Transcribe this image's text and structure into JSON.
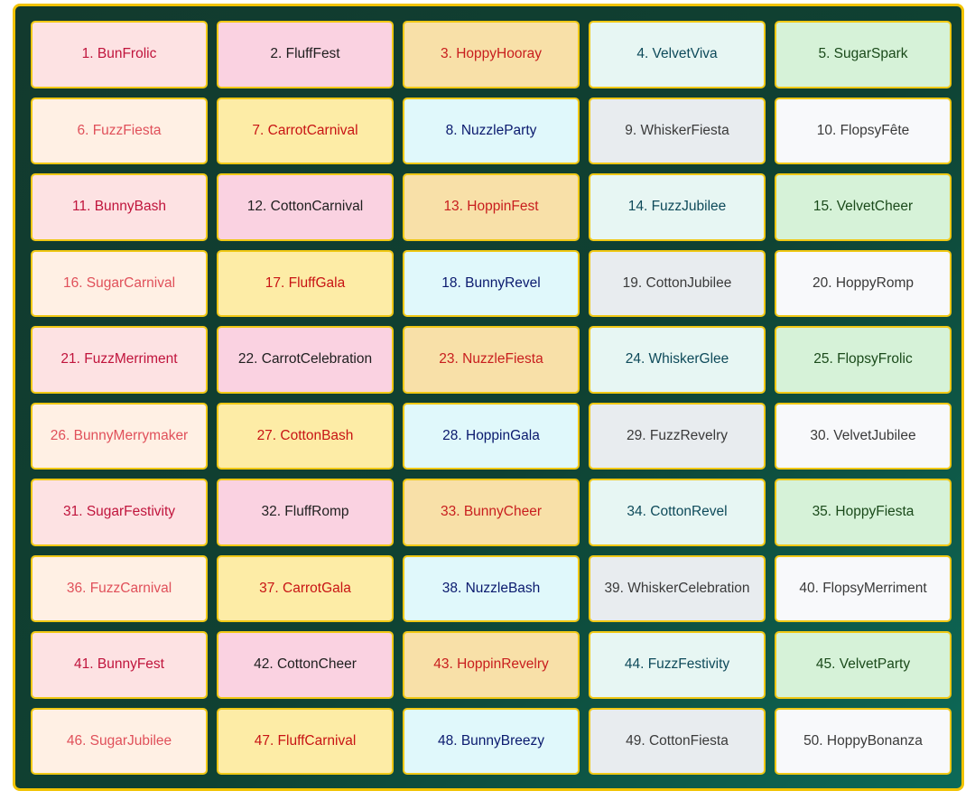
{
  "palette": [
    {
      "bg": "#fde2e3",
      "fg": "#c0143c"
    },
    {
      "bg": "#fad2e1",
      "fg": "#1f1f1f"
    },
    {
      "bg": "#f8e0a8",
      "fg": "#c81e1e"
    },
    {
      "bg": "#e7f6f3",
      "fg": "#0e4a5a"
    },
    {
      "bg": "#d6f2d8",
      "fg": "#1a4a1a"
    },
    {
      "bg": "#fff0e4",
      "fg": "#e0505a"
    },
    {
      "bg": "#fdeca6",
      "fg": "#c81414"
    },
    {
      "bg": "#e0f8fb",
      "fg": "#0a1a6e"
    },
    {
      "bg": "#e8ecef",
      "fg": "#3a3a3a"
    },
    {
      "bg": "#f8f9fb",
      "fg": "#3a3a3a"
    }
  ],
  "items": [
    "1. BunFrolic",
    "2. FluffFest",
    "3. HoppyHooray",
    "4. VelvetViva",
    "5. SugarSpark",
    "6. FuzzFiesta",
    "7. CarrotCarnival",
    "8. NuzzleParty",
    "9. WhiskerFiesta",
    "10. FlopsyFête",
    "11. BunnyBash",
    "12. CottonCarnival",
    "13. HoppinFest",
    "14. FuzzJubilee",
    "15. VelvetCheer",
    "16. SugarCarnival",
    "17. FluffGala",
    "18. BunnyRevel",
    "19. CottonJubilee",
    "20. HoppyRomp",
    "21. FuzzMerriment",
    "22. CarrotCelebration",
    "23. NuzzleFiesta",
    "24. WhiskerGlee",
    "25. FlopsyFrolic",
    "26. BunnyMerrymaker",
    "27. CottonBash",
    "28. HoppinGala",
    "29. FuzzRevelry",
    "30. VelvetJubilee",
    "31. SugarFestivity",
    "32. FluffRomp",
    "33. BunnyCheer",
    "34. CottonRevel",
    "35. HoppyFiesta",
    "36. FuzzCarnival",
    "37. CarrotGala",
    "38. NuzzleBash",
    "39. WhiskerCelebration",
    "40. FlopsyMerriment",
    "41. BunnyFest",
    "42. CottonCheer",
    "43. HoppinRevelry",
    "44. FuzzFestivity",
    "45. VelvetParty",
    "46. SugarJubilee",
    "47. FluffCarnival",
    "48. BunnyBreezy",
    "49. CottonFiesta",
    "50. HoppyBonanza"
  ]
}
